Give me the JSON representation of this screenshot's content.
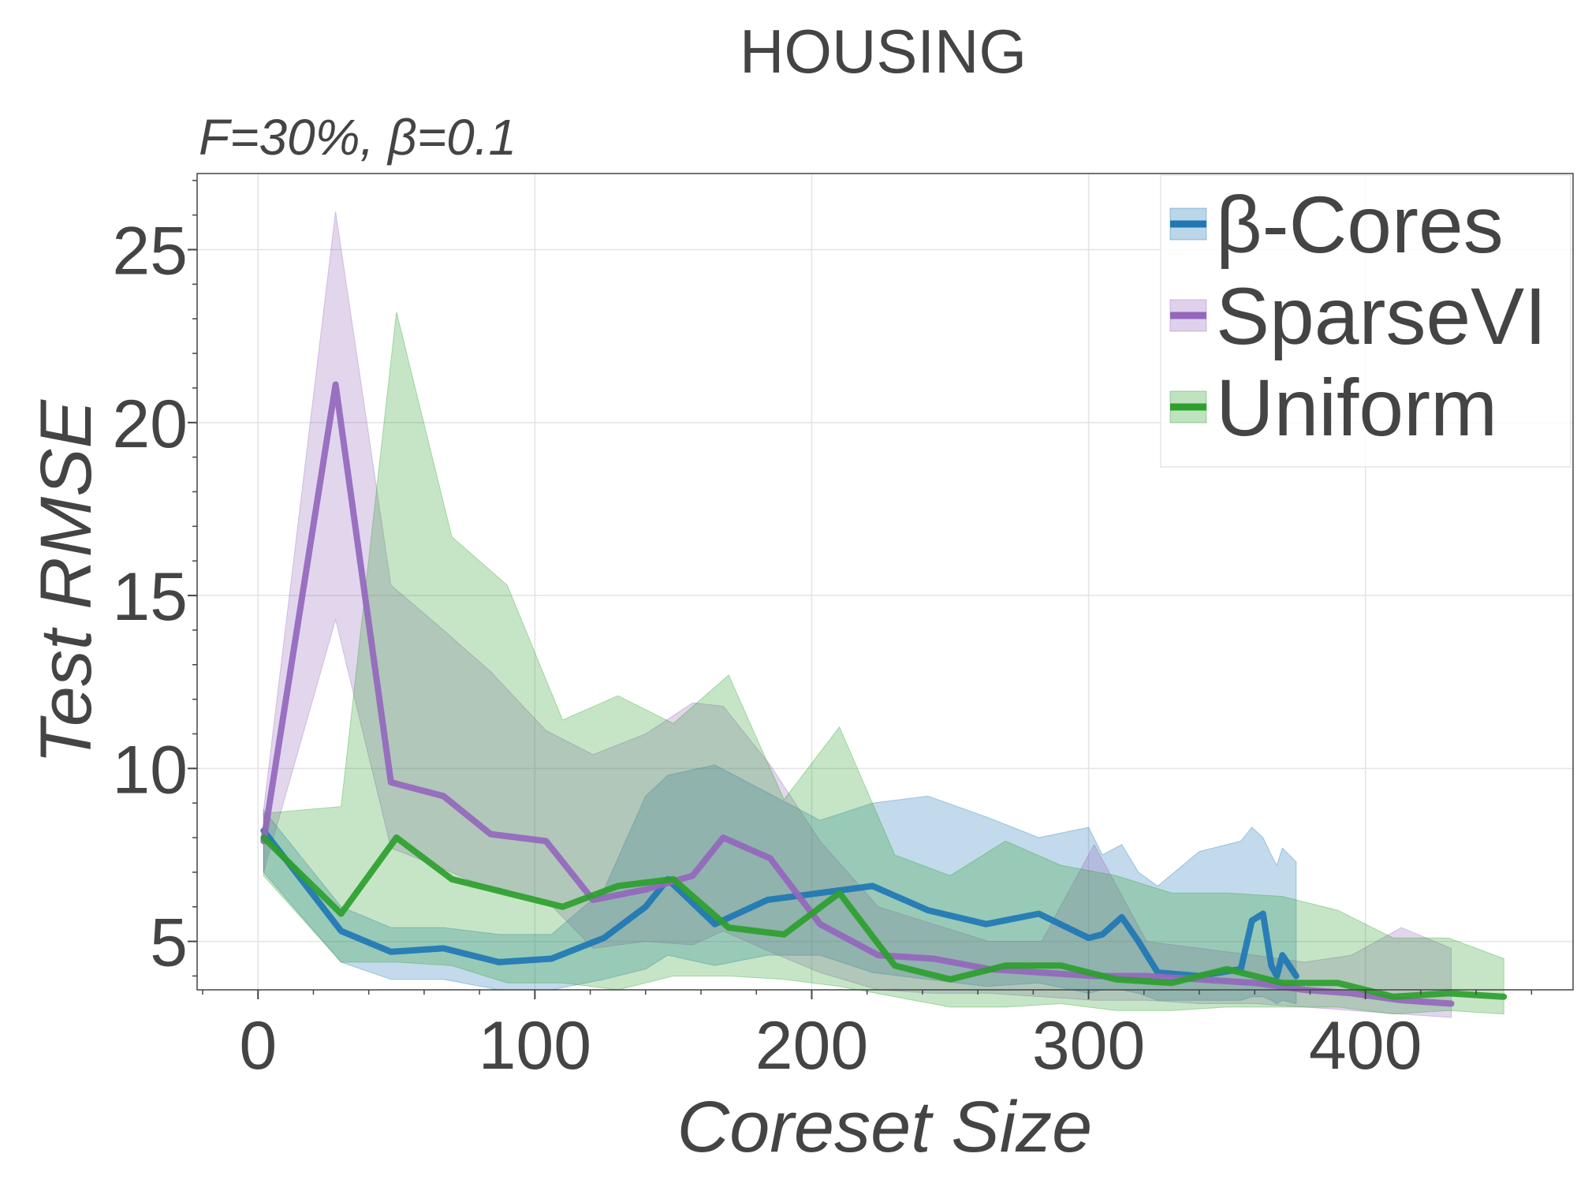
{
  "chart_data": {
    "type": "line",
    "title": "HOUSING",
    "subtitle": "F=30%,  β=0.1",
    "xlabel": "Coreset Size",
    "ylabel": "Test RMSE",
    "xlim": [
      -22,
      475
    ],
    "ylim": [
      3.6,
      27.2
    ],
    "xticks": [
      0,
      100,
      200,
      300,
      400
    ],
    "yticks": [
      5,
      10,
      15,
      20,
      25
    ],
    "grid": true,
    "legend_position": "top-right",
    "series": [
      {
        "name": "β-Cores",
        "color": "#1f77b4",
        "x": [
          2,
          30,
          48,
          67,
          87,
          106,
          125,
          140,
          148,
          165,
          184,
          203,
          222,
          242,
          263,
          282,
          300,
          305,
          312,
          318,
          325,
          340,
          355,
          359,
          363,
          366,
          368,
          370,
          375
        ],
        "y": [
          8.2,
          5.3,
          4.7,
          4.8,
          4.4,
          4.5,
          5.1,
          6.0,
          6.8,
          5.5,
          6.2,
          6.4,
          6.6,
          5.9,
          5.5,
          5.8,
          5.1,
          5.2,
          5.7,
          5.0,
          4.1,
          4.0,
          4.2,
          5.6,
          5.8,
          4.3,
          4.0,
          4.6,
          4.0
        ],
        "lower": [
          7.0,
          4.4,
          3.9,
          3.9,
          3.6,
          3.6,
          3.9,
          4.2,
          4.6,
          4.3,
          4.6,
          4.6,
          4.1,
          3.9,
          3.7,
          3.8,
          3.5,
          3.6,
          3.6,
          3.5,
          3.3,
          3.3,
          3.3,
          3.4,
          3.4,
          3.3,
          3.2,
          3.3,
          3.2
        ],
        "upper": [
          8.8,
          6.0,
          5.4,
          5.4,
          5.2,
          5.2,
          6.5,
          9.2,
          9.8,
          10.1,
          9.3,
          8.5,
          9.0,
          9.2,
          8.6,
          8.0,
          8.3,
          7.5,
          7.8,
          7.0,
          6.6,
          7.6,
          7.9,
          8.3,
          8.0,
          7.5,
          7.2,
          7.7,
          7.3
        ]
      },
      {
        "name": "SparseVI",
        "color": "#9467bd",
        "x": [
          2,
          28,
          48,
          67,
          84,
          104,
          121,
          140,
          157,
          168,
          185,
          203,
          224,
          244,
          264,
          283,
          302,
          321,
          340,
          360,
          378,
          395,
          413,
          431
        ],
        "y": [
          7.9,
          21.1,
          9.6,
          9.2,
          8.1,
          7.9,
          6.2,
          6.5,
          6.9,
          8.0,
          7.4,
          5.5,
          4.6,
          4.5,
          4.2,
          4.1,
          4.0,
          4.0,
          3.9,
          3.8,
          3.6,
          3.5,
          3.3,
          3.2
        ],
        "lower": [
          7.0,
          14.3,
          7.7,
          7.1,
          6.5,
          6.2,
          4.8,
          5.0,
          4.9,
          5.3,
          4.7,
          4.1,
          3.6,
          3.5,
          3.5,
          3.4,
          3.3,
          3.3,
          3.2,
          3.2,
          3.1,
          3.0,
          2.9,
          2.8
        ],
        "upper": [
          8.8,
          26.1,
          15.3,
          14.0,
          12.8,
          11.1,
          10.4,
          11.0,
          11.9,
          11.8,
          10.1,
          7.9,
          6.0,
          5.5,
          5.0,
          5.0,
          7.8,
          5.0,
          4.8,
          4.6,
          4.4,
          4.6,
          5.4,
          4.8
        ]
      },
      {
        "name": "Uniform",
        "color": "#2ca02c",
        "x": [
          2,
          30,
          50,
          70,
          90,
          110,
          130,
          150,
          170,
          190,
          210,
          230,
          250,
          270,
          290,
          310,
          330,
          350,
          370,
          390,
          410,
          430,
          450
        ],
        "y": [
          8.0,
          5.8,
          8.0,
          6.8,
          6.4,
          6.0,
          6.6,
          6.8,
          5.4,
          5.2,
          6.4,
          4.3,
          3.9,
          4.3,
          4.3,
          3.9,
          3.8,
          4.2,
          3.8,
          3.8,
          3.4,
          3.5,
          3.4
        ],
        "lower": [
          6.9,
          4.4,
          4.4,
          4.3,
          3.8,
          3.8,
          3.6,
          4.0,
          4.0,
          3.9,
          3.7,
          3.4,
          3.1,
          3.1,
          3.2,
          3.0,
          3.0,
          3.1,
          3.1,
          3.1,
          2.9,
          3.0,
          2.9
        ],
        "upper": [
          8.7,
          8.9,
          23.2,
          16.7,
          15.3,
          11.4,
          12.1,
          11.3,
          12.7,
          9.1,
          11.2,
          7.5,
          6.9,
          7.9,
          7.2,
          6.9,
          6.4,
          6.4,
          6.3,
          5.9,
          5.1,
          5.1,
          4.5
        ]
      }
    ]
  }
}
